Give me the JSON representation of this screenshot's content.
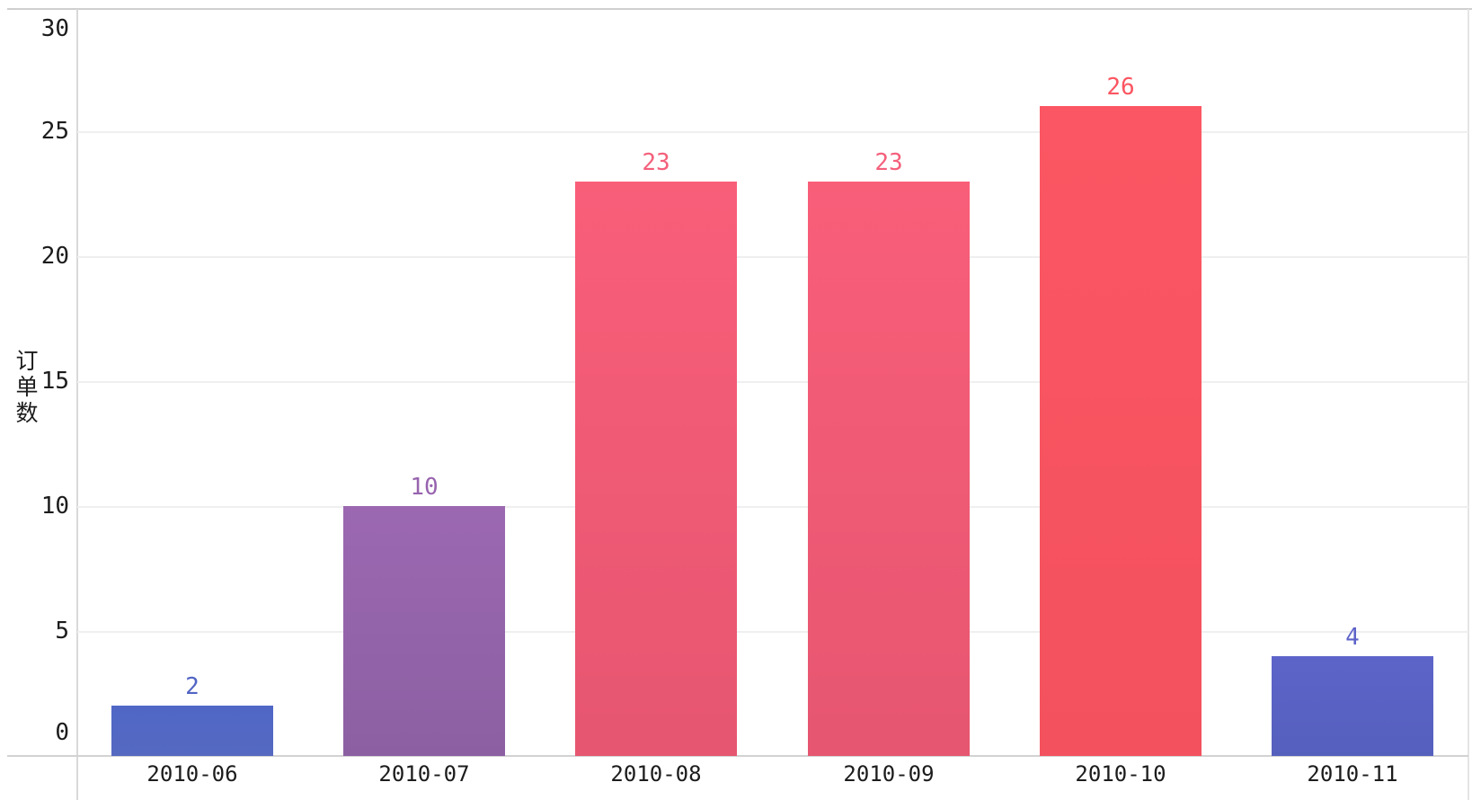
{
  "chart_data": {
    "type": "bar",
    "title": "",
    "xlabel": "",
    "ylabel": "订单数",
    "categories": [
      "2010-06",
      "2010-07",
      "2010-08",
      "2010-09",
      "2010-10",
      "2010-11"
    ],
    "values": [
      2,
      10,
      23,
      23,
      26,
      4
    ],
    "ylim": [
      0,
      30
    ],
    "yticks": [
      "0",
      "5",
      "10",
      "15",
      "20",
      "25",
      "30"
    ],
    "grid": true,
    "legend": false,
    "bars": [
      {
        "category": "2010-06",
        "value": 2,
        "label": "2",
        "color_top": "#5067c7",
        "color_bottom": "#5569c0",
        "label_color": "#5164c4"
      },
      {
        "category": "2010-07",
        "value": 10,
        "label": "10",
        "color_top": "#9b68b1",
        "color_bottom": "#8c5fa2",
        "label_color": "#9763ae"
      },
      {
        "category": "2010-08",
        "value": 23,
        "label": "23",
        "color_top": "#f95e79",
        "color_bottom": "#e65670",
        "label_color": "#f4607b"
      },
      {
        "category": "2010-09",
        "value": 23,
        "label": "23",
        "color_top": "#f95e79",
        "color_bottom": "#e65670",
        "label_color": "#f4607b"
      },
      {
        "category": "2010-10",
        "value": 26,
        "label": "26",
        "color_top": "#fb5663",
        "color_bottom": "#f3515e",
        "label_color": "#fb5561"
      },
      {
        "category": "2010-11",
        "value": 4,
        "label": "4",
        "color_top": "#5d64c9",
        "color_bottom": "#5560bd",
        "label_color": "#5e63c8"
      }
    ],
    "colors": {
      "axis_text": "#1c1c1c",
      "grid_line": "#efefef",
      "axis_line": "#d2d2d2",
      "background": "#ffffff"
    }
  }
}
